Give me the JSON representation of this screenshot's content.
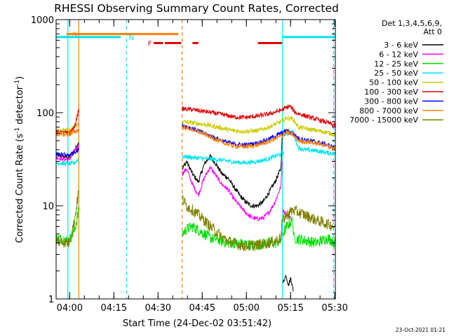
{
  "chart_data": {
    "type": "line",
    "title": "RHESSI Observing Summary Count Rates, Corrected",
    "xlabel": "Start Time (24-Dec-02 03:51:42)",
    "ylabel": "Corrected Count Rate (s",
    "ylabel_sup1": "-1",
    "ylabel_mid": " detector",
    "ylabel_sup2": "-1",
    "ylabel_end": ")",
    "y_scale": "log",
    "ylim": [
      1,
      1000
    ],
    "y_ticks": [
      {
        "v": 1,
        "label": "1"
      },
      {
        "v": 10,
        "label": "10"
      },
      {
        "v": 100,
        "label": "100"
      },
      {
        "v": 1000,
        "label": "1000"
      }
    ],
    "xlim_minutes": [
      3.7,
      98.5
    ],
    "x_ticks": [
      {
        "m": 8.3,
        "label": "04:00"
      },
      {
        "m": 23.3,
        "label": "04:15"
      },
      {
        "m": 38.3,
        "label": "04:30"
      },
      {
        "m": 53.3,
        "label": "04:45"
      },
      {
        "m": 68.3,
        "label": "05:00"
      },
      {
        "m": 83.3,
        "label": "05:15"
      },
      {
        "m": 98.3,
        "label": "05:30"
      }
    ],
    "legend_header": [
      "Det 1,3,4,5,6,9,",
      "Att 0"
    ],
    "legend_position": "right",
    "timestamp": "23-Oct-2021 01:21",
    "flags": [
      {
        "label": "S",
        "color": "#ff8000",
        "m_start": 7.2,
        "m_end": 45.2,
        "label_m": 9.2,
        "y": 700
      },
      {
        "label": "N",
        "color": "#00e5ee",
        "m_start": 3.7,
        "m_end": 25.6,
        "label_m": 28.4,
        "y": 650
      },
      {
        "label": "N",
        "color": "#00e5ee",
        "m_start": 80.7,
        "m_end": 98.5,
        "label_m": null,
        "y": 650
      }
    ],
    "flare_segments": [
      {
        "m_start": 36.8,
        "m_end": 40.0
      },
      {
        "m_start": 40.6,
        "m_end": 46.2
      },
      {
        "m_start": 50.0,
        "m_end": 52.0
      },
      {
        "m_start": 72.2,
        "m_end": 80.4
      }
    ],
    "flare_label": "F",
    "flare_label_m": 34.8,
    "flare_color": "#e00000",
    "vlines": [
      {
        "m": 7.7,
        "color": "#00e5ee",
        "dash": false
      },
      {
        "m": 11.4,
        "color": "#ff8000",
        "dash": false
      },
      {
        "m": 27.6,
        "color": "#00e5ee",
        "dash": true
      },
      {
        "m": 46.5,
        "color": "#ff8000",
        "dash": true
      },
      {
        "m": 80.6,
        "color": "#00e5ee",
        "dash": false
      },
      {
        "m": 97.9,
        "color": "#00e5ee",
        "dash": true
      }
    ],
    "series": [
      {
        "name": "3 - 6 keV",
        "color": "#000000",
        "segments": [
          [
            [
              3.7,
              35
            ],
            [
              6,
              34
            ],
            [
              8,
              33
            ],
            [
              10,
              40
            ],
            [
              11.4,
              48
            ]
          ],
          [
            [
              46.5,
              25
            ],
            [
              48,
              30
            ],
            [
              50,
              22
            ],
            [
              52,
              18
            ],
            [
              54,
              28
            ],
            [
              56,
              34
            ],
            [
              58,
              28
            ],
            [
              60,
              22
            ],
            [
              62,
              20
            ],
            [
              64,
              16
            ],
            [
              66,
              13
            ],
            [
              68,
              11
            ],
            [
              70,
              10
            ],
            [
              72,
              10
            ],
            [
              74,
              11
            ],
            [
              76,
              14
            ],
            [
              78,
              18
            ],
            [
              80,
              25
            ],
            [
              80.5,
              60
            ]
          ],
          [
            [
              80.7,
              1.5
            ],
            [
              81.8,
              1.8
            ],
            [
              82.6,
              1.4
            ],
            [
              83.4,
              1.7
            ],
            [
              84.2,
              1.2
            ]
          ]
        ]
      },
      {
        "name": "6 - 12 keV",
        "color": "#ff00ff",
        "segments": [
          [
            [
              3.7,
              33
            ],
            [
              6,
              32
            ],
            [
              8,
              31
            ],
            [
              10,
              38
            ],
            [
              11.4,
              45
            ]
          ],
          [
            [
              46.5,
              22
            ],
            [
              48,
              25
            ],
            [
              50,
              17
            ],
            [
              52,
              13
            ],
            [
              54,
              20
            ],
            [
              56,
              26
            ],
            [
              58,
              21
            ],
            [
              60,
              17
            ],
            [
              62,
              15
            ],
            [
              64,
              12
            ],
            [
              66,
              10
            ],
            [
              68,
              8.5
            ],
            [
              70,
              7.5
            ],
            [
              72,
              7.2
            ],
            [
              74,
              7.4
            ],
            [
              76,
              8.5
            ],
            [
              78,
              11
            ],
            [
              80,
              16
            ],
            [
              80.5,
              30
            ]
          ],
          [
            [
              80.7,
              9
            ],
            [
              82,
              8
            ],
            [
              83.3,
              7.5
            ]
          ]
        ]
      },
      {
        "name": "12 - 25 keV",
        "color": "#00dd00",
        "segments": [
          [
            [
              3.7,
              4.5
            ],
            [
              6,
              4.4
            ],
            [
              8,
              4.2
            ],
            [
              10,
              5.5
            ],
            [
              11.4,
              9
            ]
          ],
          [
            [
              46.5,
              5
            ],
            [
              48,
              5.6
            ],
            [
              50,
              6
            ],
            [
              52,
              5.5
            ],
            [
              54,
              5
            ],
            [
              56,
              4.5
            ],
            [
              58,
              4.4
            ],
            [
              60,
              4.2
            ],
            [
              62,
              4
            ],
            [
              64,
              4
            ],
            [
              66,
              3.9
            ],
            [
              68,
              3.9
            ],
            [
              70,
              3.8
            ],
            [
              72,
              3.8
            ],
            [
              74,
              3.9
            ],
            [
              76,
              4
            ],
            [
              78,
              4
            ],
            [
              80,
              4.2
            ],
            [
              80.5,
              5
            ]
          ],
          [
            [
              80.7,
              5
            ],
            [
              82,
              6
            ],
            [
              84,
              7
            ],
            [
              84.4,
              4.5
            ],
            [
              92,
              4
            ],
            [
              96,
              4.5
            ],
            [
              98.5,
              4
            ]
          ]
        ]
      },
      {
        "name": "25 - 50 keV",
        "color": "#00e5ee",
        "segments": [
          [
            [
              3.7,
              29
            ],
            [
              6,
              28.5
            ],
            [
              8,
              28
            ],
            [
              10,
              29
            ],
            [
              11.4,
              32
            ]
          ],
          [
            [
              46.5,
              34
            ],
            [
              50,
              33
            ],
            [
              55,
              32
            ],
            [
              60,
              31
            ],
            [
              64,
              29.5
            ],
            [
              68,
              29
            ],
            [
              72,
              30
            ],
            [
              76,
              32
            ],
            [
              80,
              36
            ],
            [
              81,
              38
            ]
          ],
          [
            [
              81,
              58
            ],
            [
              84,
              62
            ],
            [
              86,
              42
            ],
            [
              88,
              40
            ],
            [
              92,
              39
            ],
            [
              96,
              37
            ],
            [
              98.5,
              36
            ]
          ]
        ]
      },
      {
        "name": "50 - 100 keV",
        "color": "#cccc00",
        "segments": [
          [
            [
              3.7,
              66
            ],
            [
              6,
              65
            ],
            [
              8,
              64
            ],
            [
              10,
              70
            ],
            [
              11.4,
              76
            ]
          ],
          [
            [
              46.5,
              80
            ],
            [
              50,
              78
            ],
            [
              55,
              74
            ],
            [
              60,
              68
            ],
            [
              64,
              64
            ],
            [
              68,
              63
            ],
            [
              72,
              64
            ],
            [
              76,
              70
            ],
            [
              80,
              80
            ],
            [
              82,
              88
            ],
            [
              84,
              86
            ],
            [
              86,
              70
            ],
            [
              90,
              66
            ],
            [
              95,
              62
            ],
            [
              98.5,
              58
            ]
          ]
        ]
      },
      {
        "name": "100 - 300 keV",
        "color": "#e00000",
        "segments": [
          [
            [
              3.7,
              62
            ],
            [
              6,
              61
            ],
            [
              8,
              60
            ],
            [
              10,
              70
            ],
            [
              11.4,
              110
            ]
          ],
          [
            [
              46.5,
              110
            ],
            [
              50,
              108
            ],
            [
              55,
              102
            ],
            [
              60,
              96
            ],
            [
              64,
              90
            ],
            [
              68,
              89
            ],
            [
              72,
              92
            ],
            [
              76,
              97
            ],
            [
              80,
              106
            ],
            [
              83,
              118
            ],
            [
              85,
              100
            ],
            [
              88,
              93
            ],
            [
              92,
              85
            ],
            [
              96,
              78
            ],
            [
              98.5,
              72
            ]
          ]
        ]
      },
      {
        "name": "300 - 800 keV",
        "color": "#0000ff",
        "segments": [
          [
            [
              3.7,
              36
            ],
            [
              6,
              35.5
            ],
            [
              8,
              35
            ],
            [
              10,
              38
            ],
            [
              11.4,
              40
            ]
          ],
          [
            [
              46.5,
              73
            ],
            [
              50,
              68
            ],
            [
              55,
              58
            ],
            [
              60,
              50
            ],
            [
              64,
              46
            ],
            [
              68,
              45
            ],
            [
              72,
              47
            ],
            [
              76,
              52
            ],
            [
              80,
              60
            ],
            [
              82,
              64
            ],
            [
              84,
              60
            ],
            [
              86,
              53
            ],
            [
              90,
              50
            ],
            [
              95,
              46
            ],
            [
              98.5,
              42
            ]
          ]
        ]
      },
      {
        "name": "800 - 7000 keV",
        "color": "#ff8000",
        "segments": [
          [
            [
              3.7,
              59
            ],
            [
              6,
              58.5
            ],
            [
              8,
              58
            ],
            [
              10,
              62
            ],
            [
              11.4,
              66
            ]
          ],
          [
            [
              46.5,
              70
            ],
            [
              50,
              66
            ],
            [
              55,
              57
            ],
            [
              60,
              48
            ],
            [
              64,
              44
            ],
            [
              68,
              43
            ],
            [
              72,
              45
            ],
            [
              76,
              49
            ],
            [
              80,
              56
            ],
            [
              82,
              62
            ],
            [
              84,
              58
            ],
            [
              86,
              50
            ],
            [
              90,
              48
            ],
            [
              95,
              45
            ],
            [
              98.5,
              41
            ]
          ]
        ]
      },
      {
        "name": "7000 - 15000 keV",
        "color": "#808000",
        "segments": [
          [
            [
              3.7,
              4.2
            ],
            [
              6,
              4.1
            ],
            [
              8,
              4
            ],
            [
              10,
              7
            ],
            [
              11.4,
              15
            ]
          ],
          [
            [
              46.5,
              12
            ],
            [
              48,
              10
            ],
            [
              50,
              9
            ],
            [
              52,
              8
            ],
            [
              54,
              7
            ],
            [
              56,
              6
            ],
            [
              58,
              5.3
            ],
            [
              60,
              4.6
            ],
            [
              62,
              4.2
            ],
            [
              64,
              4
            ],
            [
              66,
              3.8
            ],
            [
              68,
              3.7
            ],
            [
              70,
              3.7
            ],
            [
              72,
              3.8
            ],
            [
              74,
              3.9
            ],
            [
              76,
              4
            ],
            [
              78,
              4.2
            ],
            [
              80,
              4.5
            ],
            [
              80.5,
              7
            ]
          ],
          [
            [
              80.7,
              7
            ],
            [
              82,
              8
            ],
            [
              84,
              9
            ],
            [
              86,
              8.5
            ],
            [
              88,
              8
            ],
            [
              90,
              7.5
            ],
            [
              92,
              7
            ],
            [
              95,
              6.5
            ],
            [
              98.5,
              6
            ]
          ]
        ]
      }
    ]
  }
}
